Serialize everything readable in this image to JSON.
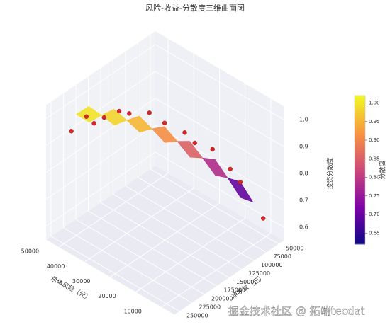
{
  "chart_data": {
    "type": "surface3d",
    "title": "风险-收益-分散度三维曲面图",
    "xlabel": "总体风险（元）",
    "ylabel": "净收益（元）",
    "zlabel": "投资分散度",
    "xlim": [
      5000,
      55000
    ],
    "xticks": [
      10000,
      20000,
      30000,
      40000,
      50000
    ],
    "ylim": [
      40000,
      260000
    ],
    "yticks": [
      50000,
      75000,
      100000,
      125000,
      150000,
      175000,
      200000,
      225000,
      250000
    ],
    "zlim": [
      0.55,
      1.05
    ],
    "zticks": [
      0.6,
      0.7,
      0.8,
      0.9,
      {
        "value": 1,
        "label": "1.0"
      }
    ],
    "surface": {
      "x": [
        15000,
        20000,
        25000,
        30000,
        35000,
        40000,
        45000,
        50000
      ],
      "y": [
        50000,
        75000,
        100000,
        125000,
        150000,
        175000,
        200000,
        225000
      ],
      "z": [
        [
          0.65,
          0.698,
          null,
          null,
          null,
          null,
          null,
          null
        ],
        [
          0.698,
          0.743,
          0.784,
          null,
          null,
          null,
          null,
          null
        ],
        [
          null,
          0.784,
          0.821,
          0.855,
          null,
          null,
          null,
          null
        ],
        [
          null,
          null,
          0.855,
          0.886,
          0.913,
          null,
          null,
          null
        ],
        [
          null,
          null,
          null,
          0.913,
          0.936,
          0.955,
          null,
          null
        ],
        [
          null,
          null,
          null,
          null,
          0.955,
          0.971,
          0.984,
          null
        ],
        [
          null,
          null,
          null,
          null,
          null,
          0.984,
          0.993,
          0.998
        ],
        [
          null,
          null,
          null,
          null,
          null,
          null,
          0.998,
          1.0
        ]
      ]
    },
    "scatter": {
      "color": "#d62728",
      "x": [
        50000,
        48000,
        46000,
        44000,
        42000,
        40000,
        36000,
        33000,
        30000,
        28000,
        24000,
        20000,
        18000,
        12000
      ],
      "y": [
        235000,
        215000,
        210000,
        200000,
        180000,
        170000,
        150000,
        135000,
        110000,
        100000,
        85000,
        70000,
        60000,
        45000
      ],
      "z": [
        0.95,
        0.99,
        0.97,
        0.99,
        1.0,
        0.99,
        0.99,
        0.95,
        0.9,
        0.86,
        0.84,
        0.77,
        0.72,
        0.6
      ]
    },
    "colormap": [
      "#0d0887",
      "#7e03a8",
      "#cc4778",
      "#f89540",
      "#f0f921"
    ],
    "colorbar": {
      "label": "分散度",
      "lim": [
        0.62,
        1.02
      ],
      "ticks": [
        0.65,
        {
          "value": 0.7,
          "label": "0.70"
        },
        0.75,
        {
          "value": 0.8,
          "label": "0.80"
        },
        0.85,
        {
          "value": 0.9,
          "label": "0.90"
        },
        0.95,
        {
          "value": 1,
          "label": "1.00"
        }
      ]
    },
    "grid": true
  },
  "watermark": "掘金技术社区 @ 拓端tecdat"
}
